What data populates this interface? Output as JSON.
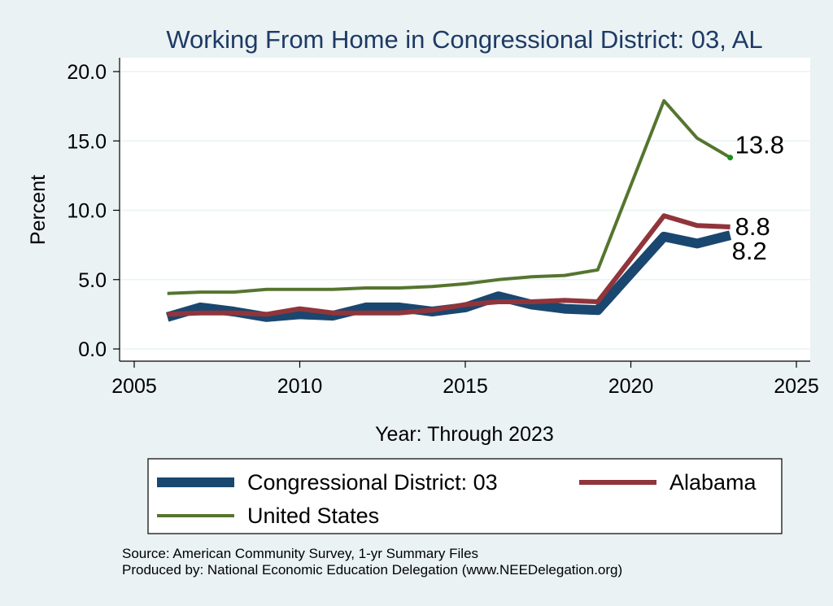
{
  "chart_data": {
    "type": "line",
    "title": "Working From Home in Congressional District: 03, AL",
    "xlabel": "Year: Through 2023",
    "ylabel": "Percent",
    "xlim": [
      2005,
      2025
    ],
    "ylim": [
      0,
      20
    ],
    "xticks": [
      2005,
      2010,
      2015,
      2020,
      2025
    ],
    "yticks": [
      0,
      5,
      10,
      15,
      20
    ],
    "xtick_labels": [
      "2005",
      "2010",
      "2015",
      "2020",
      "2025"
    ],
    "ytick_labels": [
      "0.0",
      "5.0",
      "10.0",
      "15.0",
      "20.0"
    ],
    "grid": true,
    "legend_position": "bottom",
    "series": [
      {
        "name": "Congressional District: 03",
        "color": "#1a476f",
        "end_label": "8.2",
        "points": [
          [
            2006,
            2.3
          ],
          [
            2007,
            3.0
          ],
          [
            2008,
            2.7
          ],
          [
            2009,
            2.3
          ],
          [
            2010,
            2.5
          ],
          [
            2011,
            2.4
          ],
          [
            2012,
            3.0
          ],
          [
            2013,
            3.0
          ],
          [
            2014,
            2.7
          ],
          [
            2015,
            3.0
          ],
          [
            2016,
            3.8
          ],
          [
            2017,
            3.2
          ],
          [
            2018,
            2.9
          ],
          [
            2019,
            2.8
          ],
          [
            2021,
            8.1
          ],
          [
            2022,
            7.6
          ],
          [
            2023,
            8.2
          ]
        ]
      },
      {
        "name": "Alabama",
        "color": "#90353b",
        "end_label": "8.8",
        "points": [
          [
            2006,
            2.5
          ],
          [
            2007,
            2.6
          ],
          [
            2008,
            2.6
          ],
          [
            2009,
            2.5
          ],
          [
            2010,
            2.9
          ],
          [
            2011,
            2.6
          ],
          [
            2012,
            2.6
          ],
          [
            2013,
            2.6
          ],
          [
            2014,
            2.8
          ],
          [
            2015,
            3.2
          ],
          [
            2016,
            3.4
          ],
          [
            2017,
            3.4
          ],
          [
            2018,
            3.5
          ],
          [
            2019,
            3.4
          ],
          [
            2021,
            9.6
          ],
          [
            2022,
            8.9
          ],
          [
            2023,
            8.8
          ]
        ]
      },
      {
        "name": "United States",
        "color": "#55752f",
        "end_label": "13.8",
        "points": [
          [
            2006,
            4.0
          ],
          [
            2007,
            4.1
          ],
          [
            2008,
            4.1
          ],
          [
            2009,
            4.3
          ],
          [
            2010,
            4.3
          ],
          [
            2011,
            4.3
          ],
          [
            2012,
            4.4
          ],
          [
            2013,
            4.4
          ],
          [
            2014,
            4.5
          ],
          [
            2015,
            4.7
          ],
          [
            2016,
            5.0
          ],
          [
            2017,
            5.2
          ],
          [
            2018,
            5.3
          ],
          [
            2019,
            5.7
          ],
          [
            2021,
            17.9
          ],
          [
            2022,
            15.2
          ],
          [
            2023,
            13.8
          ]
        ]
      }
    ]
  },
  "source_lines": [
    "Source: American Community Survey, 1-yr Summary Files",
    "Produced by: National Economic Education Delegation (www.NEEDelegation.org)"
  ]
}
